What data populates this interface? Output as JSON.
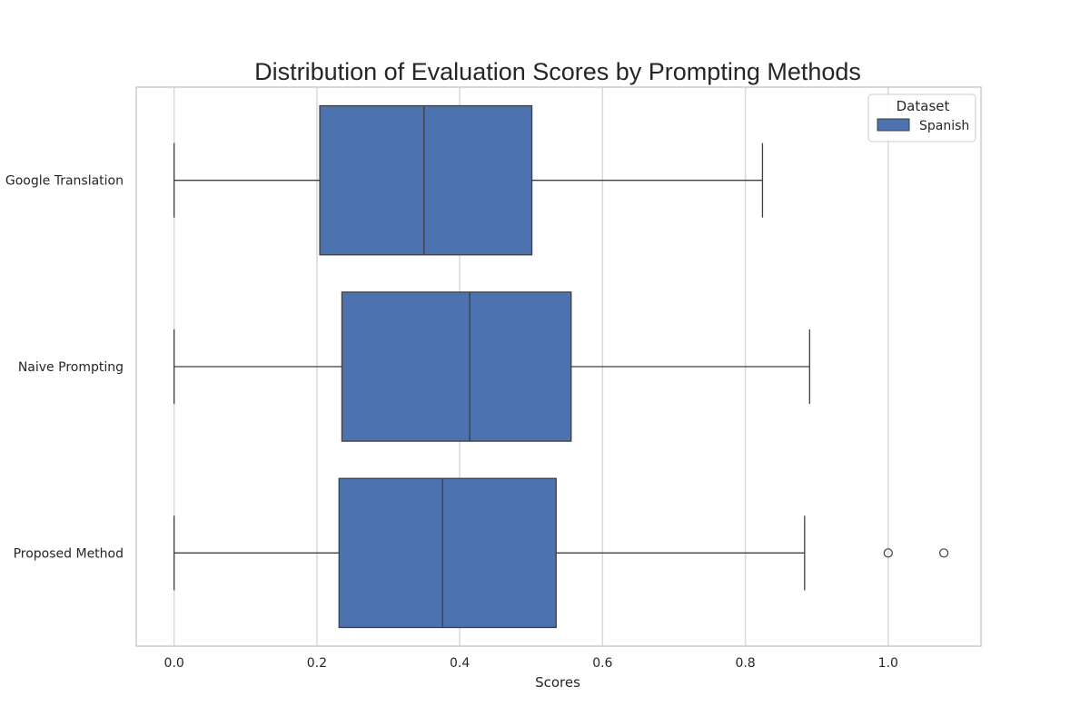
{
  "chart_data": {
    "type": "boxplot",
    "orientation": "horizontal",
    "title": "Distribution of Evaluation Scores by Prompting Methods",
    "xlabel": "Scores",
    "ylabel": "",
    "xlim": [
      -0.053,
      1.13
    ],
    "xticks": [
      0.0,
      0.2,
      0.4,
      0.6,
      0.8,
      1.0
    ],
    "xtick_labels": [
      "0.0",
      "0.2",
      "0.4",
      "0.6",
      "0.8",
      "1.0"
    ],
    "grid": "vertical",
    "categories": [
      "Google Translation",
      "Naive Prompting",
      "Proposed Method"
    ],
    "legend": {
      "title": "Dataset",
      "position": "top-right"
    },
    "series": [
      {
        "name": "Spanish",
        "color": "#4c72b0",
        "boxes": [
          {
            "min": 0.0,
            "q1": 0.204,
            "median": 0.35,
            "q3": 0.501,
            "max": 0.824,
            "outliers": []
          },
          {
            "min": 0.0,
            "q1": 0.235,
            "median": 0.414,
            "q3": 0.556,
            "max": 0.89,
            "outliers": []
          },
          {
            "min": 0.0,
            "q1": 0.231,
            "median": 0.376,
            "q3": 0.535,
            "max": 0.883,
            "outliers": [
              1.0,
              1.078
            ]
          }
        ]
      }
    ]
  }
}
